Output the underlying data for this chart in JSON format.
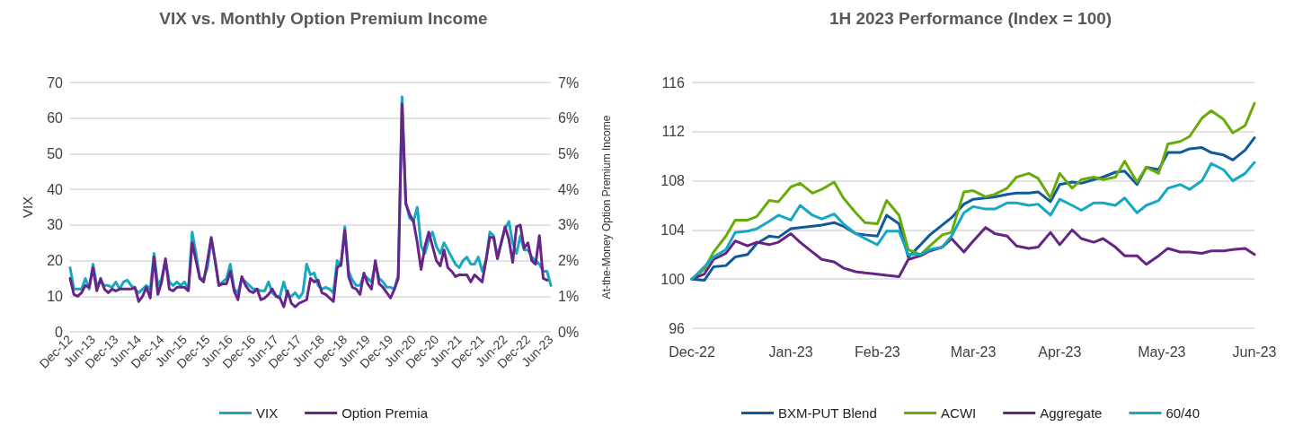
{
  "chart_data": [
    {
      "type": "line",
      "title": "VIX vs. Monthly Option Premium Income",
      "ylabel": "VIX",
      "y2label": "At-the-Money Option Premium Income",
      "grid": "y",
      "legend": "bottom",
      "marker": "none",
      "categories": [
        "Dec-12",
        null,
        null,
        null,
        null,
        null,
        "Jun-13",
        null,
        null,
        null,
        null,
        null,
        "Dec-13",
        null,
        null,
        null,
        null,
        null,
        "Jun-14",
        null,
        null,
        null,
        null,
        null,
        "Dec-14",
        null,
        null,
        null,
        null,
        null,
        "Jun-15",
        null,
        null,
        null,
        null,
        null,
        "Dec-15",
        null,
        null,
        null,
        null,
        null,
        "Jun-16",
        null,
        null,
        null,
        null,
        null,
        "Dec-16",
        null,
        null,
        null,
        null,
        null,
        "Jun-17",
        null,
        null,
        null,
        null,
        null,
        "Dec-17",
        null,
        null,
        null,
        null,
        null,
        "Jun-18",
        null,
        null,
        null,
        null,
        null,
        "Dec-18",
        null,
        null,
        null,
        null,
        null,
        "Jun-19",
        null,
        null,
        null,
        null,
        null,
        "Dec-19",
        null,
        null,
        null,
        null,
        null,
        "Jun-20",
        null,
        null,
        null,
        null,
        null,
        "Dec-20",
        null,
        null,
        null,
        null,
        null,
        "Jun-21",
        null,
        null,
        null,
        null,
        null,
        "Dec-21",
        null,
        null,
        null,
        null,
        null,
        "Jun-22",
        null,
        null,
        null,
        null,
        null,
        "Dec-22",
        null,
        null,
        null,
        null,
        null,
        "Jun-23"
      ],
      "ylim": [
        0,
        70
      ],
      "yticks": [
        0,
        10,
        20,
        30,
        40,
        50,
        60,
        70
      ],
      "y2lim": [
        0,
        7
      ],
      "y2ticks": [
        {
          "value": 0,
          "label": "0%"
        },
        {
          "value": 1,
          "label": "1%"
        },
        {
          "value": 2,
          "label": "2%"
        },
        {
          "value": 3,
          "label": "3%"
        },
        {
          "value": 4,
          "label": "4%"
        },
        {
          "value": 5,
          "label": "5%"
        },
        {
          "value": 6,
          "label": "6%"
        },
        {
          "value": 7,
          "label": "7%"
        }
      ],
      "series": [
        {
          "name": "VIX",
          "color": "#17a9bf",
          "values": [
            18,
            12,
            12,
            12,
            15,
            12,
            19,
            13,
            14,
            13,
            13,
            12.5,
            14,
            12,
            14,
            14.5,
            13,
            12,
            11,
            12,
            13,
            12,
            22,
            13,
            15,
            20,
            14,
            13,
            14,
            13,
            14,
            12,
            28,
            22,
            15,
            15,
            18,
            26,
            20,
            13,
            14,
            15,
            19,
            12,
            11,
            15,
            14,
            13,
            12,
            12,
            11.5,
            11.5,
            14,
            11,
            10,
            10,
            14,
            10,
            10,
            11,
            9.5,
            11,
            19,
            16,
            16.5,
            13,
            12,
            12.5,
            12,
            11,
            20,
            18.5,
            29.5,
            17,
            14.5,
            13,
            13,
            16,
            15,
            14,
            19,
            15,
            14,
            12.5,
            12.5,
            12,
            16,
            66,
            36,
            32,
            31,
            35,
            24,
            22,
            26,
            28,
            24,
            22,
            25,
            23,
            21,
            19,
            18,
            20,
            21,
            19,
            19,
            21,
            17,
            20,
            28,
            27,
            21,
            25,
            29,
            31,
            25,
            22,
            27,
            23,
            23,
            21,
            20,
            19,
            17,
            17,
            13
          ]
        },
        {
          "name": "Option Premia",
          "color": "#68248a",
          "axis": "y2",
          "values": [
            1.5,
            1.05,
            1.0,
            1.1,
            1.3,
            1.25,
            1.8,
            1.15,
            1.5,
            1.2,
            1.1,
            1.2,
            1.15,
            1.2,
            1.2,
            1.2,
            1.2,
            1.25,
            0.85,
            1.0,
            1.25,
            0.95,
            2.1,
            1.05,
            1.4,
            2.05,
            1.2,
            1.15,
            1.25,
            1.25,
            1.25,
            1.15,
            2.5,
            2.0,
            1.5,
            1.4,
            2.0,
            2.65,
            2.0,
            1.3,
            1.35,
            1.35,
            1.7,
            1.15,
            0.9,
            1.55,
            1.3,
            1.15,
            1.1,
            1.2,
            0.9,
            0.95,
            1.05,
            1.2,
            1.0,
            0.95,
            0.7,
            1.15,
            0.8,
            0.7,
            0.8,
            0.85,
            0.9,
            1.5,
            1.4,
            1.45,
            1.1,
            1.05,
            0.95,
            0.85,
            1.8,
            1.9,
            2.85,
            1.55,
            1.25,
            1.2,
            1.05,
            1.65,
            1.35,
            1.2,
            2.0,
            1.35,
            1.25,
            1.1,
            0.95,
            1.2,
            1.5,
            6.4,
            3.6,
            3.3,
            3.1,
            2.5,
            1.75,
            2.4,
            2.8,
            2.4,
            2.0,
            1.85,
            2.3,
            1.8,
            1.7,
            1.55,
            1.6,
            1.6,
            1.6,
            1.4,
            1.6,
            1.5,
            1.4,
            2.0,
            2.65,
            2.65,
            2.05,
            2.5,
            2.95,
            2.6,
            1.95,
            2.95,
            3.0,
            2.35,
            2.5,
            2.0,
            1.9,
            2.7,
            1.5,
            1.45,
            null
          ]
        }
      ]
    },
    {
      "type": "line",
      "title": "1H 2023 Performance (Index = 100)",
      "grid": "y",
      "legend": "bottom",
      "marker": "none",
      "x": [
        "2022-12-30",
        "2023-01-03",
        "2023-01-06",
        "2023-01-10",
        "2023-01-13",
        "2023-01-17",
        "2023-01-20",
        "2023-01-24",
        "2023-01-27",
        "2023-01-31",
        "2023-02-03",
        "2023-02-07",
        "2023-02-10",
        "2023-02-14",
        "2023-02-17",
        "2023-02-21",
        "2023-02-24",
        "2023-02-28",
        "2023-03-03",
        "2023-03-07",
        "2023-03-10",
        "2023-03-14",
        "2023-03-17",
        "2023-03-21",
        "2023-03-24",
        "2023-03-28",
        "2023-03-31",
        "2023-04-04",
        "2023-04-07",
        "2023-04-11",
        "2023-04-14",
        "2023-04-18",
        "2023-04-21",
        "2023-04-25",
        "2023-04-28",
        "2023-05-02",
        "2023-05-05",
        "2023-05-09",
        "2023-05-12",
        "2023-05-16",
        "2023-05-19",
        "2023-05-23",
        "2023-05-26",
        "2023-05-30",
        "2023-06-02",
        "2023-06-06",
        "2023-06-09",
        "2023-06-13",
        "2023-06-16",
        "2023-06-20",
        "2023-06-23",
        "2023-06-27",
        "2023-06-30"
      ],
      "xlim": [
        "2022-12-30",
        "2023-06-30"
      ],
      "xticks": [
        {
          "value": "2022-12-30",
          "label": "Dec-22"
        },
        {
          "value": "2023-01-31",
          "label": "Jan-23"
        },
        {
          "value": "2023-02-28",
          "label": "Feb-23"
        },
        {
          "value": "2023-03-31",
          "label": "Mar-23"
        },
        {
          "value": "2023-04-28",
          "label": "Apr-23"
        },
        {
          "value": "2023-05-31",
          "label": "May-23"
        },
        {
          "value": "2023-06-30",
          "label": "Jun-23"
        }
      ],
      "ylim": [
        96,
        116
      ],
      "yticks": [
        96,
        100,
        104,
        108,
        112,
        116
      ],
      "series": [
        {
          "name": "BXM-PUT Blend",
          "color": "#0e5a9c",
          "values": [
            100,
            99.9,
            101,
            101.1,
            101.8,
            102,
            102.9,
            103.5,
            103.4,
            104.1,
            104.2,
            104.3,
            104.4,
            104.6,
            104.3,
            103.7,
            103.6,
            103.5,
            105.2,
            104.5,
            101.8,
            102.8,
            103.6,
            104.4,
            105,
            106.1,
            106.5,
            106.6,
            106.7,
            106.9,
            107,
            107,
            107.1,
            106.3,
            107.7,
            107.9,
            107.8,
            108.1,
            108.3,
            108.7,
            108.8,
            107.7,
            109.1,
            108.9,
            110.3,
            110.3,
            110.6,
            110.7,
            110.3,
            110.1,
            109.7,
            110.5,
            111.5
          ]
        },
        {
          "name": "ACWI",
          "color": "#6aab0c",
          "values": [
            100,
            100.8,
            102.2,
            103.5,
            104.8,
            104.8,
            105.1,
            106.4,
            106.3,
            107.5,
            107.8,
            107,
            107.3,
            107.9,
            106.6,
            105.4,
            104.6,
            104.5,
            106.4,
            105.2,
            102.4,
            102,
            102.7,
            103.6,
            103.8,
            107.1,
            107.2,
            106.7,
            106.9,
            107.4,
            108.3,
            108.6,
            108.2,
            106.6,
            108.6,
            107.4,
            108.1,
            108.3,
            108.1,
            108.3,
            109.6,
            107.9,
            109.1,
            108.6,
            111,
            111.2,
            111.6,
            113.1,
            113.7,
            113,
            111.9,
            112.5,
            114.3
          ]
        },
        {
          "name": "Aggregate",
          "color": "#662483",
          "values": [
            100,
            100.4,
            101.6,
            102.1,
            103.1,
            102.7,
            103,
            102.8,
            103,
            103.7,
            103,
            102.2,
            101.6,
            101.4,
            100.9,
            100.6,
            100.5,
            100.4,
            100.3,
            100.2,
            101.6,
            101.9,
            102.3,
            102.6,
            103.3,
            102.2,
            103.1,
            104.2,
            103.7,
            103.5,
            102.7,
            102.5,
            102.6,
            103.8,
            102.8,
            104,
            103.3,
            103,
            103.3,
            102.6,
            101.9,
            101.9,
            101.2,
            101.9,
            102.5,
            102.2,
            102.2,
            102.1,
            102.3,
            102.3,
            102.4,
            102.5,
            102
          ]
        },
        {
          "name": "60/40",
          "color": "#15a8c4",
          "values": [
            100,
            101,
            101.8,
            102.4,
            103.8,
            103.9,
            104.1,
            104.7,
            105.2,
            104.8,
            106,
            105.2,
            104.9,
            105.3,
            104.5,
            103.7,
            103.3,
            102.8,
            103.9,
            103.9,
            102,
            102,
            102.4,
            102.6,
            103.5,
            105.4,
            105.9,
            105.7,
            105.7,
            106.2,
            106.2,
            106,
            106.1,
            105.2,
            106.5,
            106,
            105.6,
            106.2,
            106.2,
            106,
            106.6,
            105.4,
            106,
            106.4,
            107.4,
            107.7,
            107.3,
            108,
            109.4,
            108.9,
            108,
            108.6,
            109.5
          ]
        }
      ]
    }
  ]
}
